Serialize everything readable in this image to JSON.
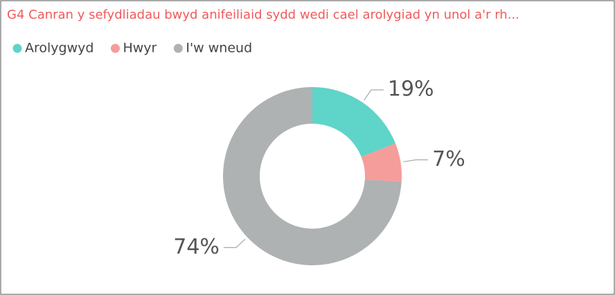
{
  "chart_data": {
    "type": "pie",
    "title": "G4 Canran y sefydliadau bwyd anifeiliaid sydd wedi cael arolygiad yn unol a'r rh...",
    "categories": [
      "Arolygwyd",
      "Hwyr",
      "I'w wneud"
    ],
    "values": [
      19,
      7,
      74
    ],
    "value_labels": [
      "19%",
      "7%",
      "74%"
    ],
    "colors": [
      "#5fd4c9",
      "#f59d9b",
      "#aeb2b3"
    ],
    "donut": true
  }
}
